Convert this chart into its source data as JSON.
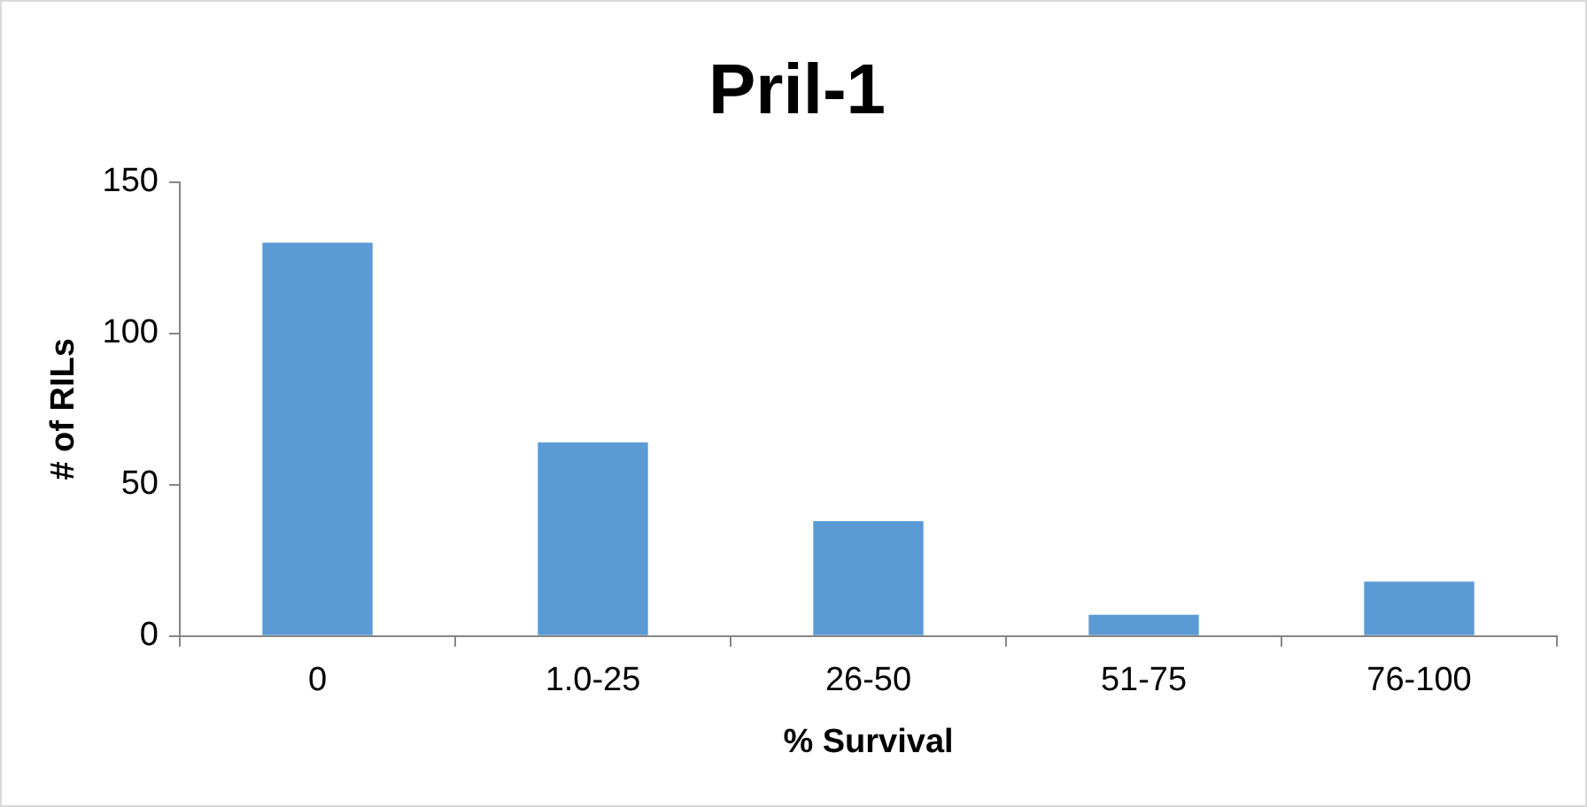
{
  "chart_data": {
    "type": "bar",
    "title": "Pril-1",
    "xlabel": "% Survival",
    "ylabel": "# of RILs",
    "categories": [
      "0",
      "1.0-25",
      "26-50",
      "51-75",
      "76-100"
    ],
    "values": [
      130,
      64,
      38,
      7,
      18
    ],
    "color": "#5b9bd5",
    "ylim": [
      0,
      150
    ],
    "yticks": [
      0,
      50,
      100,
      150
    ],
    "grid": false,
    "legend": false
  }
}
